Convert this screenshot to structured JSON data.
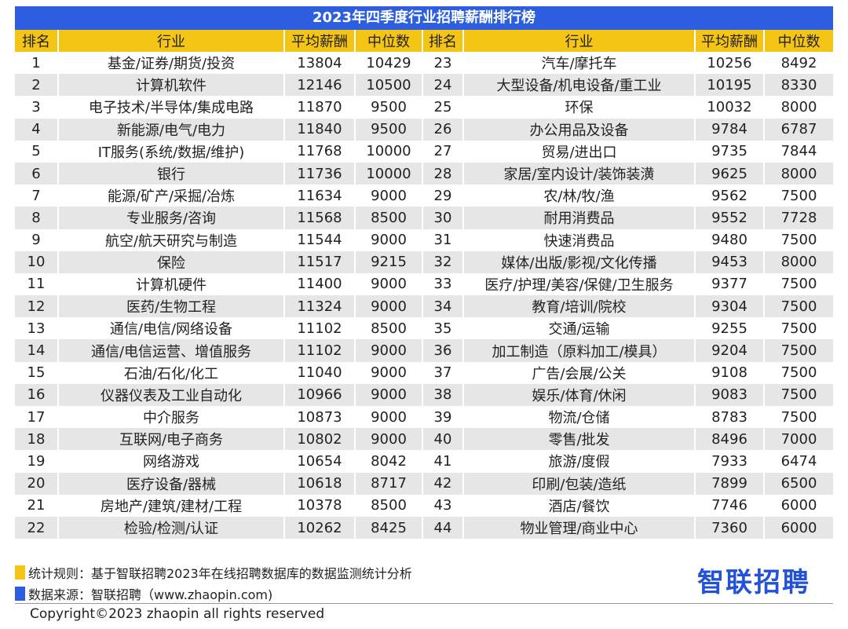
{
  "title": "2023年四季度行业招聘薪酬排行榜",
  "headers": [
    "排名",
    "行业",
    "平均薪酬",
    "中位数",
    "排名",
    "行业",
    "平均薪酬",
    "中位数"
  ],
  "rows": [
    [
      "1",
      "基金/证券/期货/投资",
      "13804",
      "10429",
      "23",
      "汽车/摩托车",
      "10256",
      "8492"
    ],
    [
      "2",
      "计算机软件",
      "12146",
      "10500",
      "24",
      "大型设备/机电设备/重工业",
      "10195",
      "8330"
    ],
    [
      "3",
      "电子技术/半导体/集成电路",
      "11870",
      "9500",
      "25",
      "环保",
      "10032",
      "8000"
    ],
    [
      "4",
      "新能源/电气/电力",
      "11840",
      "9500",
      "26",
      "办公用品及设备",
      "9784",
      "6787"
    ],
    [
      "5",
      "IT服务(系统/数据/维护)",
      "11768",
      "10000",
      "27",
      "贸易/进出口",
      "9735",
      "7844"
    ],
    [
      "6",
      "银行",
      "11736",
      "10000",
      "28",
      "家居/室内设计/装饰装潢",
      "9625",
      "8000"
    ],
    [
      "7",
      "能源/矿产/采掘/冶炼",
      "11634",
      "9000",
      "29",
      "农/林/牧/渔",
      "9562",
      "7500"
    ],
    [
      "8",
      "专业服务/咨询",
      "11568",
      "8500",
      "30",
      "耐用消费品",
      "9552",
      "7728"
    ],
    [
      "9",
      "航空/航天研究与制造",
      "11544",
      "9000",
      "31",
      "快速消费品",
      "9480",
      "7500"
    ],
    [
      "10",
      "保险",
      "11517",
      "9215",
      "32",
      "媒体/出版/影视/文化传播",
      "9453",
      "8000"
    ],
    [
      "11",
      "计算机硬件",
      "11400",
      "9000",
      "33",
      "医疗/护理/美容/保健/卫生服务",
      "9377",
      "7500"
    ],
    [
      "12",
      "医药/生物工程",
      "11324",
      "9000",
      "34",
      "教育/培训/院校",
      "9304",
      "7500"
    ],
    [
      "13",
      "通信/电信/网络设备",
      "11102",
      "8500",
      "35",
      "交通/运输",
      "9255",
      "7500"
    ],
    [
      "14",
      "通信/电信运营、增值服务",
      "11102",
      "9000",
      "36",
      "加工制造（原料加工/模具）",
      "9204",
      "7500"
    ],
    [
      "15",
      "石油/石化/化工",
      "11040",
      "9000",
      "37",
      "广告/会展/公关",
      "9108",
      "7500"
    ],
    [
      "16",
      "仪器仪表及工业自动化",
      "10966",
      "9000",
      "38",
      "娱乐/体育/休闲",
      "9083",
      "7500"
    ],
    [
      "17",
      "中介服务",
      "10873",
      "9000",
      "39",
      "物流/仓储",
      "8783",
      "7500"
    ],
    [
      "18",
      "互联网/电子商务",
      "10802",
      "9000",
      "40",
      "零售/批发",
      "8496",
      "7000"
    ],
    [
      "19",
      "网络游戏",
      "10654",
      "8042",
      "41",
      "旅游/度假",
      "7933",
      "6474"
    ],
    [
      "20",
      "医疗设备/器械",
      "10618",
      "8717",
      "42",
      "印刷/包装/造纸",
      "7899",
      "6500"
    ],
    [
      "21",
      "房地产/建筑/建材/工程",
      "10378",
      "8500",
      "43",
      "酒店/餐饮",
      "7746",
      "6000"
    ],
    [
      "22",
      "检验/检测/认证",
      "10262",
      "8425",
      "44",
      "物业管理/商业中心",
      "7360",
      "6000"
    ]
  ],
  "notes": {
    "rule": "统计规则：基于智联招聘2023年在线招聘数据库的数据监测统计分析",
    "source": "数据来源：智联招聘（www.zhaopin.com)"
  },
  "logo": "智联招聘",
  "copyright": "Copyright©2023 zhaopin all rights reserved",
  "colors": {
    "title_bg": "#2d5ee0",
    "header_bg": "#f5c515",
    "alt_row": "#e6e6e6",
    "rule_bar": "#f5c515",
    "source_bar": "#2d5ee0",
    "logo": "#2352d8"
  }
}
